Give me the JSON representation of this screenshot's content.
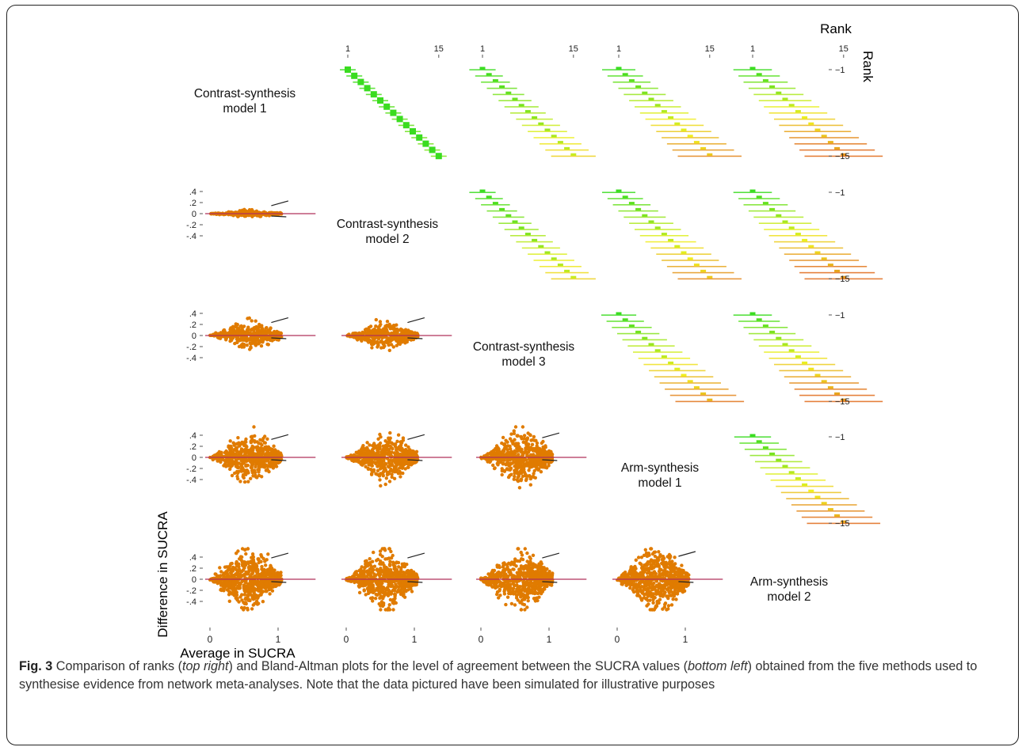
{
  "figure": {
    "rank_col_title": "Rank",
    "rank_row_title": "Rank",
    "rank_tick_first": "1",
    "rank_tick_last": "15",
    "rank_row_tick_first": "−1",
    "rank_row_tick_last": "−15",
    "ylabel": "Difference in SUCRA",
    "xlabel": "Average in SUCRA",
    "y_ticks": [
      ".4",
      ".2",
      "0",
      "-.2",
      "-.4"
    ],
    "x_ticks": [
      "0",
      "1"
    ],
    "models": [
      {
        "line1": "Contrast-synthesis",
        "line2": "model 1"
      },
      {
        "line1": "Contrast-synthesis",
        "line2": "model 2"
      },
      {
        "line1": "Contrast-synthesis",
        "line2": "model 3"
      },
      {
        "line1": "Arm-synthesis",
        "line2": "model 1"
      },
      {
        "line1": "Arm-synthesis",
        "line2": "model 2"
      }
    ]
  },
  "caption": {
    "label": "Fig. 3",
    "t1": " Comparison of ranks (",
    "i1": "top right",
    "t2": ") and Bland-Altman plots for the level of agreement between the SUCRA values (",
    "i2": "bottom left",
    "t3": ") obtained from the five methods used to synthesise evidence from network meta-analyses. Note that the data pictured have been simulated for illustrative purposes"
  },
  "chart_data": {
    "type": "scatter",
    "description_type": "matrix of rank heatmaps (upper triangle) and Bland-Altman scatter plots (lower triangle)",
    "rank_axis": {
      "range": [
        1,
        15
      ],
      "ticks": [
        1,
        15
      ]
    },
    "bland_altman_axes": {
      "x_ticks": [
        0,
        1
      ],
      "y_ticks": [
        0.4,
        0.2,
        0,
        -0.2,
        -0.4
      ]
    },
    "colors": {
      "points": "#e07b00",
      "zero_line": "#b0305a",
      "limit_lines": "#222222",
      "rank_high_agreement": "#3adc20",
      "rank_mid": "#f0f020",
      "rank_low": "#e06a1a"
    },
    "bland_altman_panels": [
      {
        "row": 2,
        "col": 1,
        "spread": 0.05
      },
      {
        "row": 3,
        "col": 1,
        "spread": 0.2
      },
      {
        "row": 3,
        "col": 2,
        "spread": 0.2
      },
      {
        "row": 4,
        "col": 1,
        "spread": 0.35
      },
      {
        "row": 4,
        "col": 2,
        "spread": 0.35
      },
      {
        "row": 4,
        "col": 3,
        "spread": 0.4
      },
      {
        "row": 5,
        "col": 1,
        "spread": 0.45
      },
      {
        "row": 5,
        "col": 2,
        "spread": 0.45
      },
      {
        "row": 5,
        "col": 3,
        "spread": 0.45
      },
      {
        "row": 5,
        "col": 4,
        "spread": 0.5
      }
    ],
    "rank_panels": [
      {
        "row": 1,
        "col": 2,
        "agreement": 1.0
      },
      {
        "row": 1,
        "col": 3,
        "agreement": 0.7
      },
      {
        "row": 1,
        "col": 4,
        "agreement": 0.5
      },
      {
        "row": 1,
        "col": 5,
        "agreement": 0.35
      },
      {
        "row": 2,
        "col": 3,
        "agreement": 0.7
      },
      {
        "row": 2,
        "col": 4,
        "agreement": 0.5
      },
      {
        "row": 2,
        "col": 5,
        "agreement": 0.35
      },
      {
        "row": 3,
        "col": 4,
        "agreement": 0.45
      },
      {
        "row": 3,
        "col": 5,
        "agreement": 0.35
      },
      {
        "row": 4,
        "col": 5,
        "agreement": 0.4
      }
    ]
  }
}
